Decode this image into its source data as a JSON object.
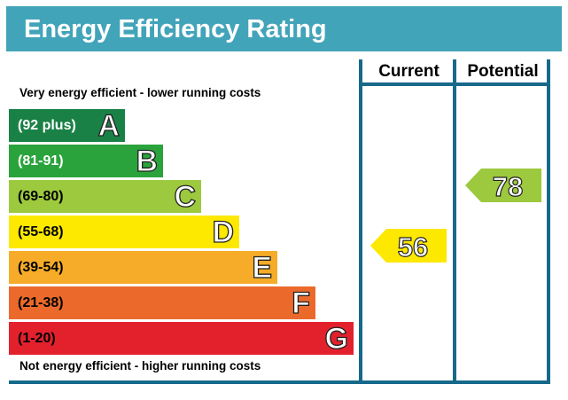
{
  "title": "Energy Efficiency Rating",
  "columns": {
    "current": "Current",
    "potential": "Potential"
  },
  "captions": {
    "top": "Very energy efficient - lower running costs",
    "bottom": "Not energy efficient - higher running costs"
  },
  "colors": {
    "header": "#42a4b9",
    "frame": "#17698a",
    "band_A": "#1a8146",
    "band_B": "#2aa33c",
    "band_C": "#9cc93d",
    "band_D": "#fde800",
    "band_E": "#f6ac28",
    "band_F": "#eb6a2b",
    "band_G": "#e3212d"
  },
  "chart_data": {
    "type": "bar",
    "title": "Energy Efficiency Rating",
    "bands": [
      {
        "letter": "A",
        "range": "(92 plus)",
        "min": 92,
        "max": 100
      },
      {
        "letter": "B",
        "range": "(81-91)",
        "min": 81,
        "max": 91
      },
      {
        "letter": "C",
        "range": "(69-80)",
        "min": 69,
        "max": 80
      },
      {
        "letter": "D",
        "range": "(55-68)",
        "min": 55,
        "max": 68
      },
      {
        "letter": "E",
        "range": "(39-54)",
        "min": 39,
        "max": 54
      },
      {
        "letter": "F",
        "range": "(21-38)",
        "min": 21,
        "max": 38
      },
      {
        "letter": "G",
        "range": "(1-20)",
        "min": 1,
        "max": 20
      }
    ],
    "current": {
      "value": 56,
      "band": "D"
    },
    "potential": {
      "value": 78,
      "band": "C"
    }
  }
}
